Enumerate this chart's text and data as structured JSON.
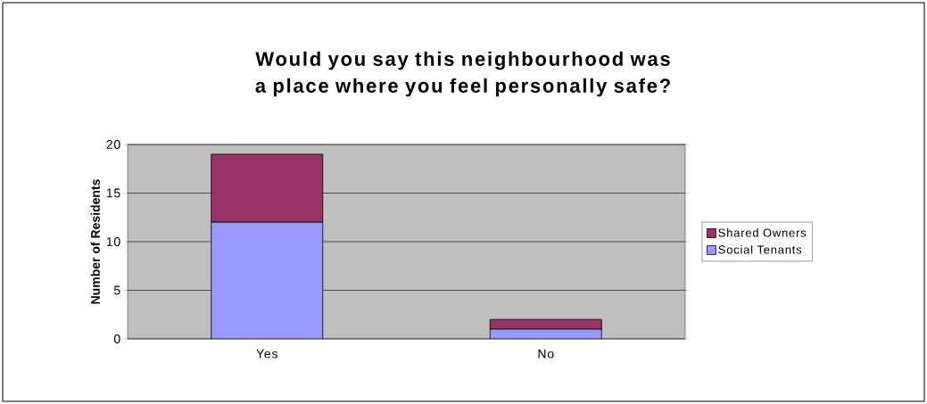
{
  "chart_data": {
    "type": "bar",
    "title": "Would you say this neighbourhood was a place where you feel personally safe?",
    "ylabel": "Number of Residents",
    "categories": [
      "Yes",
      "No"
    ],
    "stacked": true,
    "series": [
      {
        "name": "Social Tenants",
        "color": "#9999ff",
        "values": [
          12,
          1
        ]
      },
      {
        "name": "Shared Owners",
        "color": "#993366",
        "values": [
          7,
          1
        ]
      }
    ],
    "ylim": [
      0,
      20
    ],
    "yticks": [
      0,
      5,
      10,
      15,
      20
    ],
    "grid": "y",
    "legend": "right"
  }
}
